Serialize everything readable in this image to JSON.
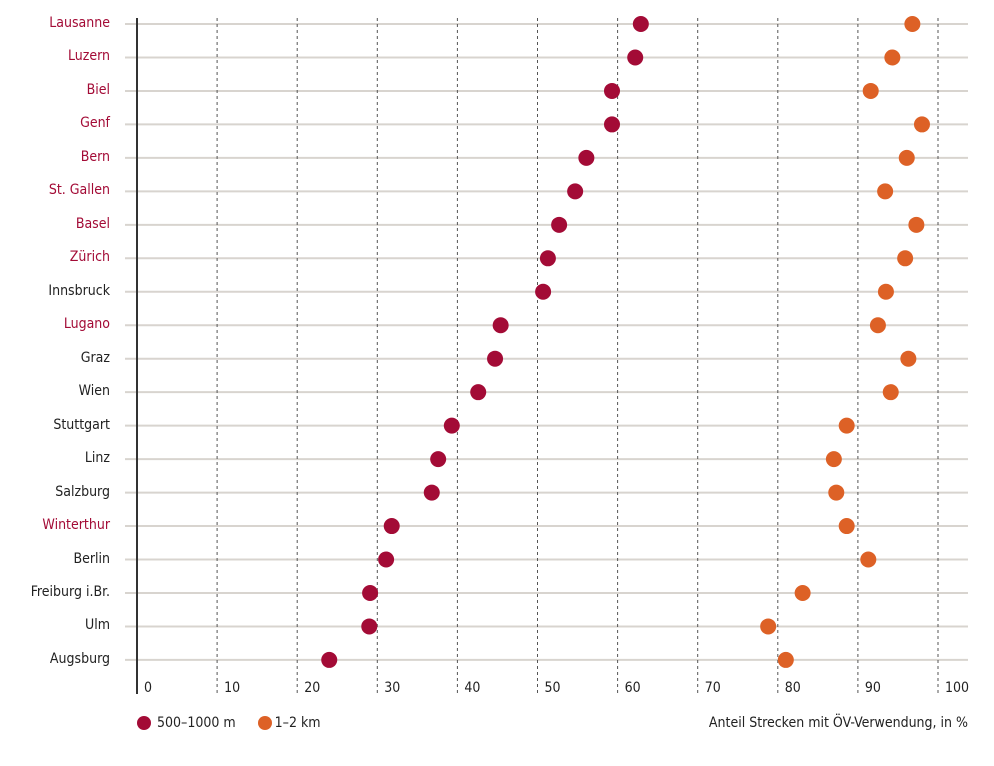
{
  "colors": {
    "series1": "#A30B36",
    "series2": "#DD6126",
    "swiss_label": "#A30B36",
    "other_label": "#222222",
    "grid": "#d8d4cf"
  },
  "chart_data": {
    "type": "scatter",
    "title": "",
    "xlabel": "Anteil Strecken mit ÖV-Verwendung, in %",
    "ylabel": "",
    "xlim": [
      0,
      100
    ],
    "xticks": [
      0,
      10,
      20,
      30,
      40,
      50,
      60,
      70,
      80,
      90,
      100
    ],
    "legend_position": "bottom-left",
    "grid": true,
    "categories": [
      "Lausanne",
      "Luzern",
      "Biel",
      "Genf",
      "Bern",
      "St. Gallen",
      "Basel",
      "Zürich",
      "Innsbruck",
      "Lugano",
      "Graz",
      "Wien",
      "Stuttgart",
      "Linz",
      "Salzburg",
      "Winterthur",
      "Berlin",
      "Freiburg i.Br.",
      "Ulm",
      "Augsburg"
    ],
    "swiss": [
      true,
      true,
      true,
      true,
      true,
      true,
      true,
      true,
      false,
      true,
      false,
      false,
      false,
      false,
      false,
      true,
      false,
      false,
      false,
      false
    ],
    "series": [
      {
        "name": "500–1000 m",
        "values": [
          62.9,
          62.2,
          59.3,
          59.3,
          56.1,
          54.7,
          52.7,
          51.3,
          50.7,
          45.4,
          44.7,
          42.6,
          39.3,
          37.6,
          36.8,
          31.8,
          31.1,
          29.1,
          29.0,
          24.0
        ]
      },
      {
        "name": "1–2 km",
        "values": [
          96.8,
          94.3,
          91.6,
          98.0,
          96.1,
          93.4,
          97.3,
          95.9,
          93.5,
          92.5,
          96.3,
          94.1,
          88.6,
          87.0,
          87.3,
          88.6,
          91.3,
          83.1,
          78.8,
          81.0
        ]
      }
    ]
  }
}
